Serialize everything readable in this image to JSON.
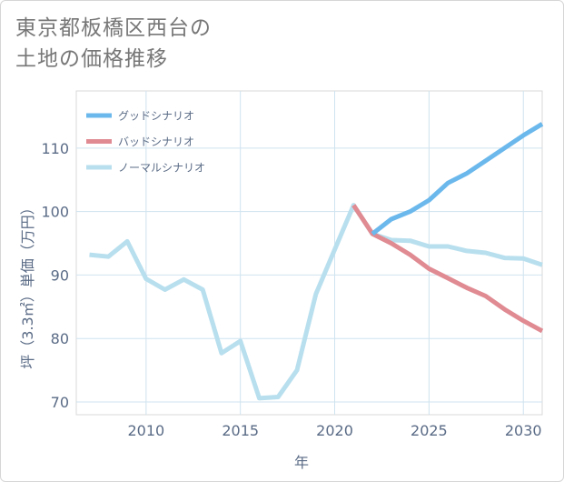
{
  "title": {
    "line1": "東京都板橋区西台の",
    "line2": "土地の価格推移"
  },
  "chart_data": {
    "type": "line",
    "xlabel": "年",
    "ylabel": "坪（3.3㎡）単価（万円）",
    "xlim": [
      2006.3,
      2031
    ],
    "ylim": [
      68,
      119
    ],
    "xticks": [
      2010,
      2015,
      2020,
      2025,
      2030
    ],
    "yticks": [
      70,
      80,
      90,
      100,
      110
    ],
    "grid": true,
    "legend_position": "top-left",
    "series": [
      {
        "name": "グッドシナリオ",
        "color": "#6bb8ec",
        "x": [
          2022,
          2023,
          2024,
          2025,
          2026,
          2027,
          2028,
          2029,
          2030,
          2031
        ],
        "values": [
          96.5,
          98.8,
          100.0,
          101.8,
          104.5,
          106.0,
          108.0,
          110.0,
          112.0,
          113.8
        ]
      },
      {
        "name": "バッドシナリオ",
        "color": "#e08a92",
        "x": [
          2021,
          2022,
          2023,
          2024,
          2025,
          2026,
          2027,
          2028,
          2029,
          2030,
          2031
        ],
        "values": [
          101.0,
          96.5,
          95.0,
          93.2,
          91.0,
          89.5,
          88.0,
          86.7,
          84.6,
          82.8,
          81.2
        ]
      },
      {
        "name": "ノーマルシナリオ",
        "color": "#b8dfee",
        "x": [
          2007,
          2008,
          2009,
          2010,
          2011,
          2012,
          2013,
          2014,
          2015,
          2016,
          2017,
          2018,
          2019,
          2020,
          2021,
          2022,
          2023,
          2024,
          2025,
          2026,
          2027,
          2028,
          2029,
          2030,
          2031
        ],
        "values": [
          93.2,
          92.9,
          95.3,
          89.4,
          87.7,
          89.3,
          87.7,
          77.7,
          79.6,
          70.6,
          70.8,
          75.0,
          87.0,
          94.0,
          101.0,
          96.5,
          95.5,
          95.4,
          94.5,
          94.5,
          93.8,
          93.5,
          92.7,
          92.6,
          91.6
        ]
      }
    ]
  }
}
